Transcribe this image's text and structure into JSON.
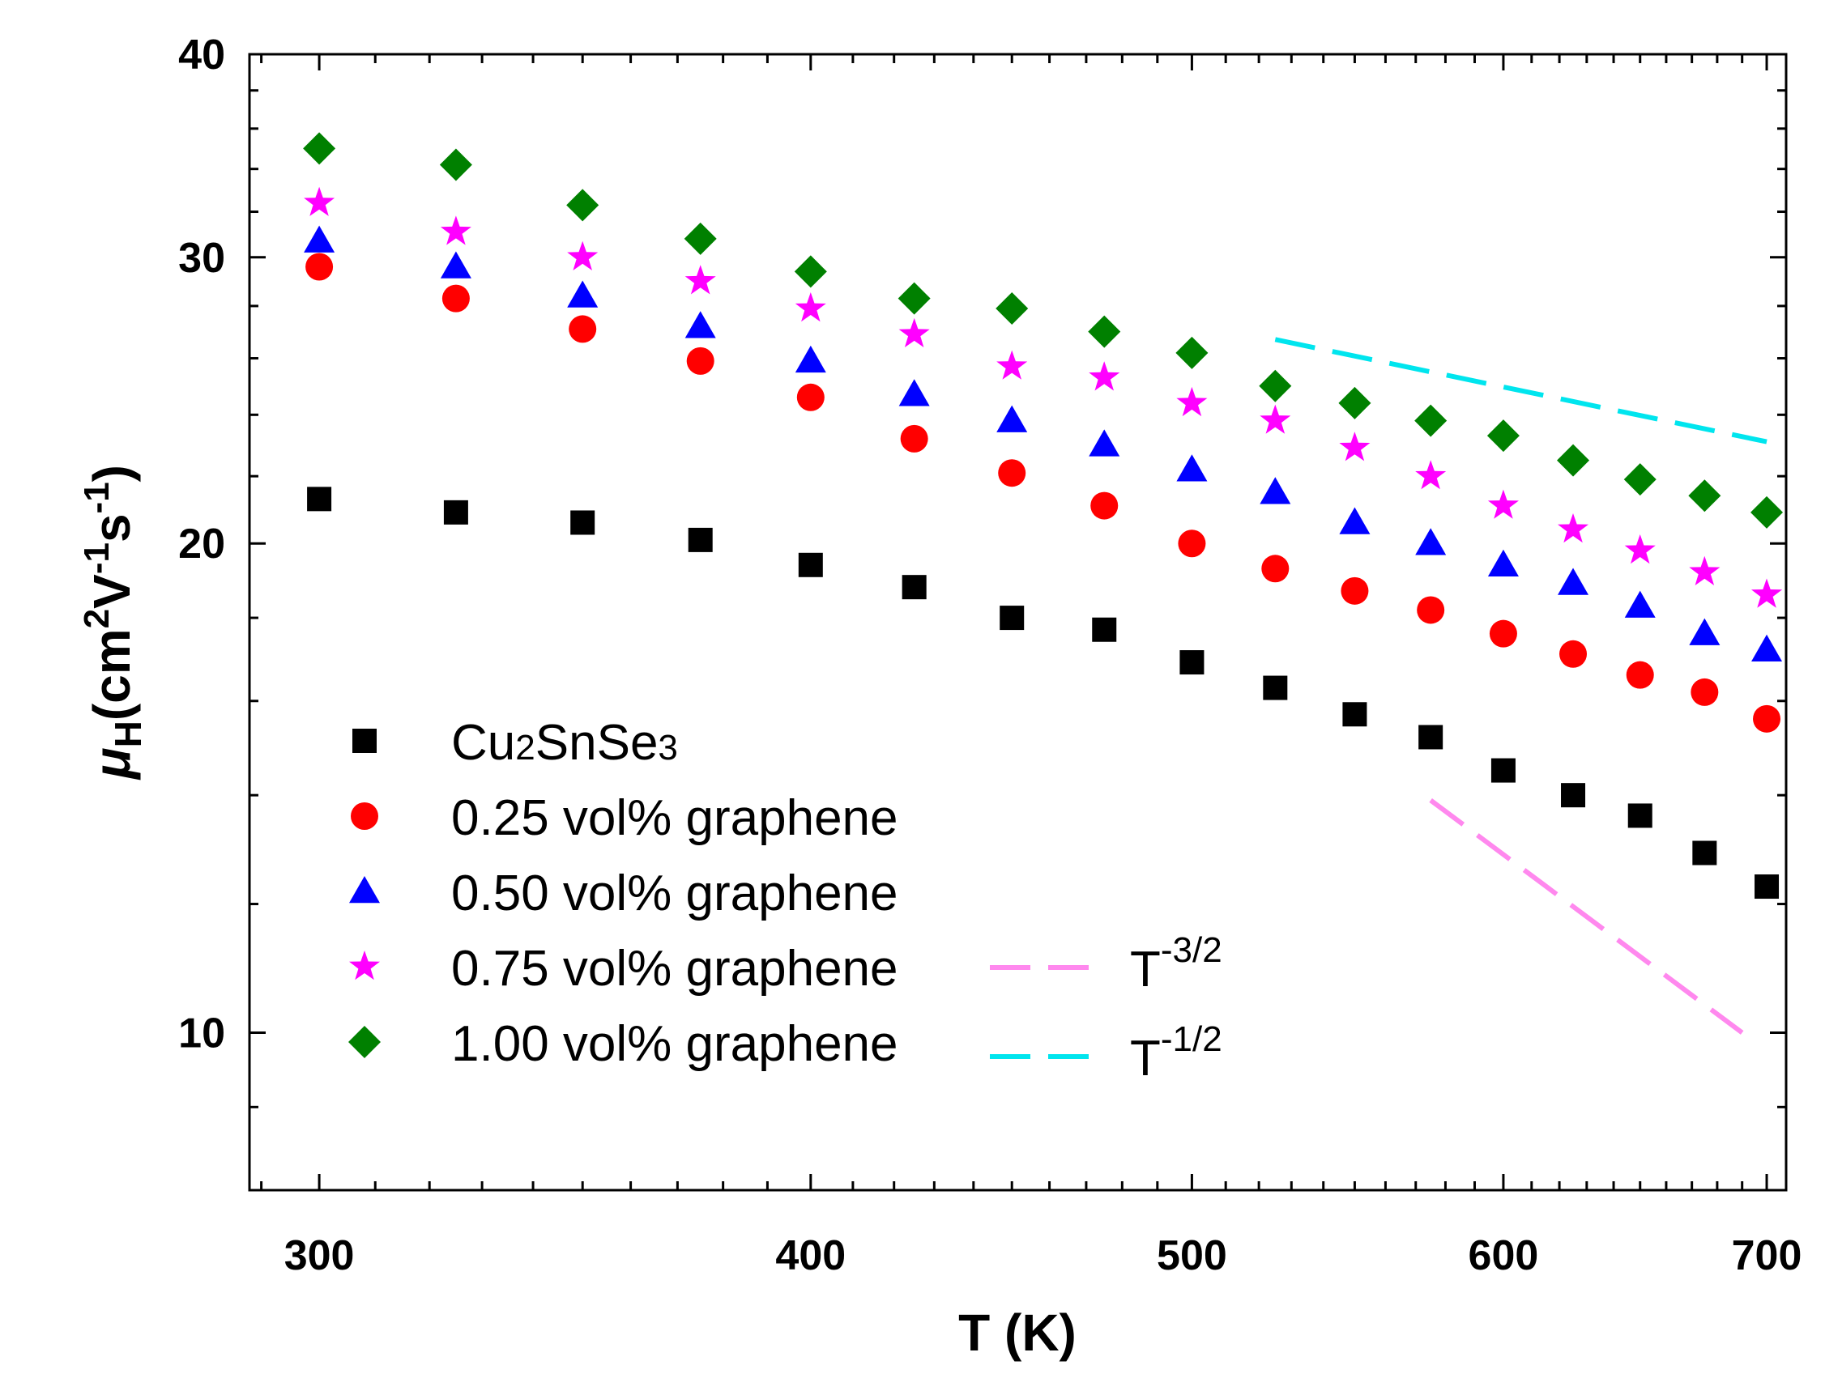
{
  "chart_data": {
    "type": "scatter",
    "title": "",
    "xlabel": "T (K)",
    "ylabel": {
      "symbol": "μ",
      "subscript": "H",
      "units_prefix": "(cm",
      "exp1": "2",
      "mid1": "V",
      "exp2": "-1",
      "mid2": "s",
      "exp3": "-1",
      "close": ")"
    },
    "xscale": "log",
    "yscale": "log",
    "xlim": [
      288,
      708
    ],
    "ylim": [
      8,
      40
    ],
    "xticks": [
      {
        "value": 300,
        "label": "300"
      },
      {
        "value": 400,
        "label": "400"
      },
      {
        "value": 500,
        "label": "500"
      },
      {
        "value": 600,
        "label": "600"
      },
      {
        "value": 700,
        "label": "700"
      }
    ],
    "yticks": [
      {
        "value": 10,
        "label": "10"
      },
      {
        "value": 20,
        "label": "20"
      },
      {
        "value": 30,
        "label": "30"
      },
      {
        "value": 40,
        "label": "40"
      }
    ],
    "x": [
      300,
      325,
      350,
      375,
      400,
      425,
      450,
      475,
      500,
      525,
      550,
      575,
      600,
      625,
      650,
      675,
      700
    ],
    "series": [
      {
        "name": "Cu2SnSe3",
        "name_parts": [
          "Cu",
          "2",
          "SnSe",
          "3"
        ],
        "marker": "square",
        "color": "#000000",
        "values": [
          21.3,
          20.9,
          20.6,
          20.1,
          19.4,
          18.8,
          18.0,
          17.7,
          16.9,
          16.3,
          15.7,
          15.2,
          14.5,
          14.0,
          13.6,
          12.9,
          12.3
        ]
      },
      {
        "name": "0.25 vol% graphene",
        "marker": "circle",
        "color": "#ff0000",
        "values": [
          29.6,
          28.3,
          27.1,
          25.9,
          24.6,
          23.2,
          22.1,
          21.1,
          20.0,
          19.3,
          18.7,
          18.2,
          17.6,
          17.1,
          16.6,
          16.2,
          15.6
        ]
      },
      {
        "name": "0.50 vol% graphene",
        "marker": "triangle",
        "color": "#0000ff",
        "values": [
          30.7,
          29.6,
          28.4,
          27.2,
          25.9,
          24.7,
          23.8,
          23.0,
          22.2,
          21.5,
          20.6,
          20.0,
          19.4,
          18.9,
          18.3,
          17.6,
          17.2
        ]
      },
      {
        "name": "0.75 vol% graphene",
        "marker": "star",
        "color": "#ff00ff",
        "values": [
          32.4,
          31.1,
          30.0,
          29.0,
          27.9,
          26.9,
          25.7,
          25.3,
          24.4,
          23.8,
          22.9,
          22.0,
          21.1,
          20.4,
          19.8,
          19.2,
          18.6
        ]
      },
      {
        "name": "1.00 vol% graphene",
        "marker": "diamond",
        "color": "#008000",
        "values": [
          35.0,
          34.2,
          32.3,
          30.8,
          29.4,
          28.3,
          27.9,
          27.0,
          26.2,
          25.0,
          24.4,
          23.8,
          23.3,
          22.5,
          21.9,
          21.4,
          20.9
        ]
      }
    ],
    "reference_lines": [
      {
        "name": "T-3/2",
        "base": "T",
        "exponent": "-3/2",
        "color": "#ff88ee",
        "x": [
          575,
          690
        ],
        "y": [
          13.9,
          10.0
        ]
      },
      {
        "name": "T-1/2",
        "base": "T",
        "exponent": "-1/2",
        "color": "#00e5ee",
        "x": [
          525,
          700
        ],
        "y": [
          26.7,
          23.1
        ]
      }
    ],
    "legend_position": "bottom-left"
  }
}
